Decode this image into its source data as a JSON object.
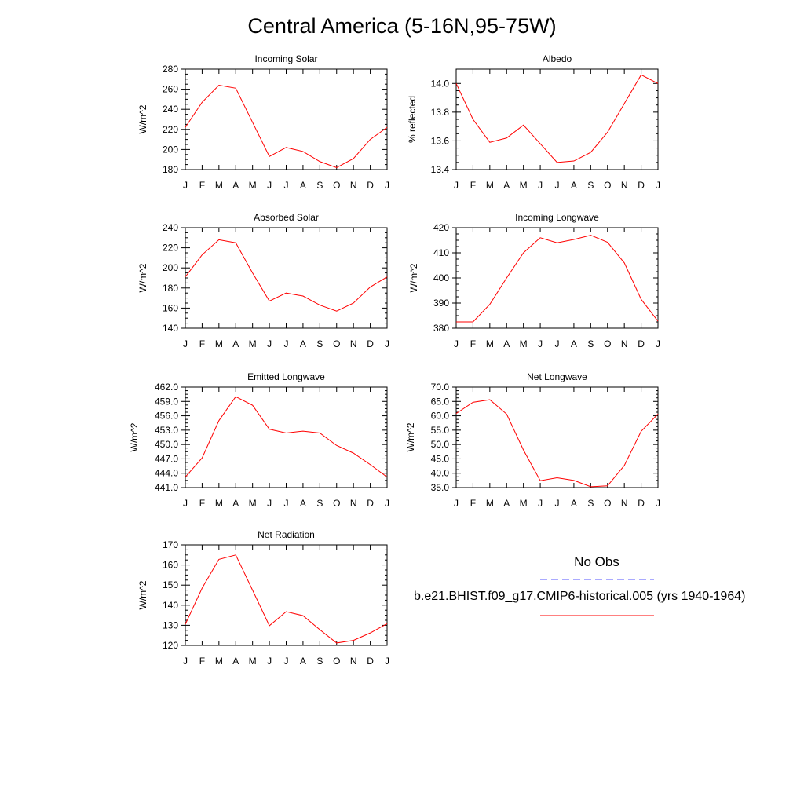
{
  "title": "Central America (5-16N,95-75W)",
  "legend": {
    "obs_label": "No Obs",
    "obs_color": "#5555ff",
    "model_label": "b.e21.BHIST.f09_g17.CMIP6-historical.005 (yrs 1940-1964)",
    "model_color": "#ff0000"
  },
  "chart_data": [
    {
      "type": "line",
      "title": "Incoming Solar",
      "xlabel": "",
      "ylabel": "W/m^2",
      "categories": [
        "J",
        "F",
        "M",
        "A",
        "M",
        "J",
        "J",
        "A",
        "S",
        "O",
        "N",
        "D",
        "J"
      ],
      "ylim": [
        180,
        280
      ],
      "yticks": [
        180,
        200,
        220,
        240,
        260,
        280
      ],
      "ytick_labels": [
        "180",
        "200",
        "220",
        "240",
        "260",
        "280"
      ],
      "series": [
        {
          "color": "#ff0000",
          "values": [
            222,
            247,
            264,
            261,
            227,
            193,
            202,
            198,
            188,
            182,
            191,
            210,
            222
          ]
        }
      ]
    },
    {
      "type": "line",
      "title": "Albedo",
      "xlabel": "",
      "ylabel": "% reflected",
      "categories": [
        "J",
        "F",
        "M",
        "A",
        "M",
        "J",
        "J",
        "A",
        "S",
        "O",
        "N",
        "D",
        "J"
      ],
      "ylim": [
        13.4,
        14.1
      ],
      "yticks": [
        13.4,
        13.6,
        13.8,
        14.0
      ],
      "ytick_labels": [
        "13.4",
        "13.6",
        "13.8",
        "14.0"
      ],
      "series": [
        {
          "color": "#ff0000",
          "values": [
            14.0,
            13.75,
            13.59,
            13.62,
            13.71,
            13.58,
            13.45,
            13.46,
            13.52,
            13.66,
            13.86,
            14.06,
            14.0
          ]
        }
      ]
    },
    {
      "type": "line",
      "title": "Absorbed Solar",
      "xlabel": "",
      "ylabel": "W/m^2",
      "categories": [
        "J",
        "F",
        "M",
        "A",
        "M",
        "J",
        "J",
        "A",
        "S",
        "O",
        "N",
        "D",
        "J"
      ],
      "ylim": [
        140,
        240
      ],
      "yticks": [
        140,
        160,
        180,
        200,
        220,
        240
      ],
      "ytick_labels": [
        "140",
        "160",
        "180",
        "200",
        "220",
        "240"
      ],
      "series": [
        {
          "color": "#ff0000",
          "values": [
            191,
            213,
            228,
            225,
            195,
            167,
            175,
            172,
            163,
            157,
            165,
            181,
            191
          ]
        }
      ]
    },
    {
      "type": "line",
      "title": "Incoming Longwave",
      "xlabel": "",
      "ylabel": "W/m^2",
      "categories": [
        "J",
        "F",
        "M",
        "A",
        "M",
        "J",
        "J",
        "A",
        "S",
        "O",
        "N",
        "D",
        "J"
      ],
      "ylim": [
        380,
        420
      ],
      "yticks": [
        380,
        390,
        400,
        410,
        420
      ],
      "ytick_labels": [
        "380",
        "390",
        "400",
        "410",
        "420"
      ],
      "series": [
        {
          "color": "#ff0000",
          "values": [
            382.5,
            382.5,
            389.5,
            400,
            410,
            416,
            414,
            415.3,
            417,
            414.2,
            406,
            391.5,
            382.8
          ]
        }
      ]
    },
    {
      "type": "line",
      "title": "Emitted Longwave",
      "xlabel": "",
      "ylabel": "W/m^2",
      "categories": [
        "J",
        "F",
        "M",
        "A",
        "M",
        "J",
        "J",
        "A",
        "S",
        "O",
        "N",
        "D",
        "J"
      ],
      "ylim": [
        441,
        462
      ],
      "yticks": [
        441,
        444,
        447,
        450,
        453,
        456,
        459,
        462
      ],
      "ytick_labels": [
        "441.0",
        "444.0",
        "447.0",
        "450.0",
        "453.0",
        "456.0",
        "459.0",
        "462.0"
      ],
      "series": [
        {
          "color": "#ff0000",
          "values": [
            443.2,
            447.2,
            455,
            460,
            458.2,
            453.2,
            452.4,
            452.8,
            452.4,
            449.8,
            448.2,
            445.8,
            443.2
          ]
        }
      ]
    },
    {
      "type": "line",
      "title": "Net Longwave",
      "xlabel": "",
      "ylabel": "W/m^2",
      "categories": [
        "J",
        "F",
        "M",
        "A",
        "M",
        "J",
        "J",
        "A",
        "S",
        "O",
        "N",
        "D",
        "J"
      ],
      "ylim": [
        35,
        70
      ],
      "yticks": [
        35,
        40,
        45,
        50,
        55,
        60,
        65,
        70
      ],
      "ytick_labels": [
        "35.0",
        "40.0",
        "45.0",
        "50.0",
        "55.0",
        "60.0",
        "65.0",
        "70.0"
      ],
      "series": [
        {
          "color": "#ff0000",
          "values": [
            60.8,
            64.7,
            65.6,
            60.6,
            48.1,
            37.4,
            38.4,
            37.5,
            35.3,
            35.6,
            42.7,
            54.6,
            60.6
          ]
        }
      ]
    },
    {
      "type": "line",
      "title": "Net Radiation",
      "xlabel": "",
      "ylabel": "W/m^2",
      "categories": [
        "J",
        "F",
        "M",
        "A",
        "M",
        "J",
        "J",
        "A",
        "S",
        "O",
        "N",
        "D",
        "J"
      ],
      "ylim": [
        120,
        170
      ],
      "yticks": [
        120,
        130,
        140,
        150,
        160,
        170
      ],
      "ytick_labels": [
        "120",
        "130",
        "140",
        "150",
        "160",
        "170"
      ],
      "series": [
        {
          "color": "#ff0000",
          "values": [
            130.5,
            148.5,
            162.8,
            165,
            147.5,
            129.8,
            136.8,
            134.8,
            127.8,
            121.2,
            122.5,
            126.2,
            130.8
          ]
        }
      ]
    }
  ]
}
